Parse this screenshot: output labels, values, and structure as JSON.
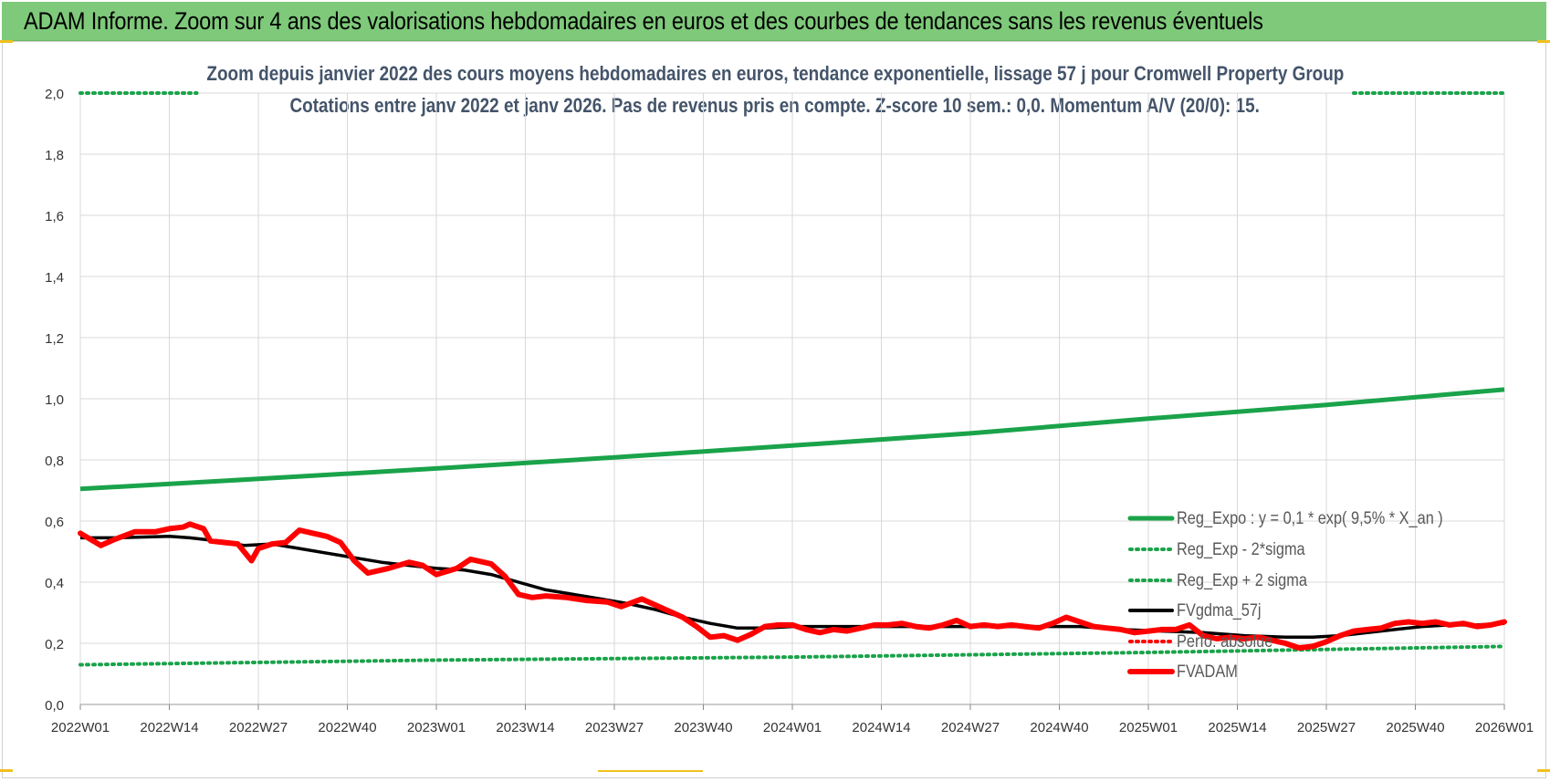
{
  "banner": {
    "title": "ADAM Informe. Zoom sur 4 ans des valorisations hebdomadaires en euros et des courbes de tendances sans les revenus éventuels"
  },
  "colors": {
    "banner_bg": "#7ec97a",
    "reg_expo": "#1aa34a",
    "sigma": "#1aa34a",
    "fvgdma": "#000000",
    "perfo": "#ff0000",
    "fvadam": "#ff0000",
    "subtitle": "#44546a",
    "grid": "#d9d9d9"
  },
  "chart_data": {
    "type": "line",
    "title": "Zoom depuis janvier 2022 des cours moyens hebdomadaires en euros, tendance exponentielle, lissage 57 j pour Cromwell Property Group",
    "subtitle": "Cotations entre janv 2022 et janv 2026. Pas de revenus pris en compte. Z-score 10 sem.: 0,0. Momentum A/V (20/0): 15.",
    "xlabel": "",
    "ylabel": "",
    "ylim": [
      0,
      2
    ],
    "yticks": [
      "0,0",
      "0,2",
      "0,4",
      "0,6",
      "0,8",
      "1,0",
      "1,2",
      "1,4",
      "1,6",
      "1,8",
      "2,0"
    ],
    "x_tick_labels": [
      "2022W01",
      "2022W14",
      "2022W27",
      "2022W40",
      "2023W01",
      "2023W14",
      "2023W27",
      "2023W40",
      "2024W01",
      "2024W14",
      "2024W27",
      "2024W40",
      "2025W01",
      "2025W14",
      "2025W27",
      "2025W40",
      "2026W01"
    ],
    "x_tick_weeks": [
      0,
      13,
      26,
      39,
      52,
      65,
      78,
      91,
      104,
      117,
      130,
      143,
      156,
      169,
      182,
      195,
      208
    ],
    "legend_position": "bottom-right",
    "series": [
      {
        "name": "Reg_Expo : y = 0,1 * exp( 9,5% *  X_an )",
        "style": "solid-thick",
        "x": [
          0,
          26,
          52,
          78,
          104,
          130,
          156,
          182,
          208
        ],
        "values": [
          0.705,
          0.738,
          0.772,
          0.808,
          0.847,
          0.887,
          0.935,
          0.98,
          1.03
        ]
      },
      {
        "name": "Reg_Exp - 2*sigma",
        "style": "dotted",
        "x": [
          0,
          52,
          104,
          156,
          208
        ],
        "values": [
          0.13,
          0.145,
          0.155,
          0.17,
          0.19
        ]
      },
      {
        "name": "Reg_Exp + 2 sigma",
        "style": "dotted",
        "x": [
          0,
          17,
          186,
          208
        ],
        "values": [
          2.0,
          2.0,
          2.0,
          2.0
        ],
        "visible_segments": [
          [
            0,
            17
          ],
          [
            186,
            208
          ]
        ]
      },
      {
        "name": "FVgdma_57j",
        "style": "solid",
        "x": [
          0,
          5,
          10,
          13,
          16,
          20,
          24,
          28,
          32,
          36,
          40,
          44,
          48,
          52,
          56,
          60,
          64,
          68,
          72,
          76,
          80,
          84,
          88,
          92,
          96,
          100,
          104,
          110,
          116,
          122,
          128,
          134,
          140,
          146,
          152,
          158,
          164,
          170,
          176,
          180,
          184,
          188,
          192,
          196,
          200,
          204,
          208
        ],
        "values": [
          0.545,
          0.545,
          0.548,
          0.55,
          0.545,
          0.535,
          0.52,
          0.525,
          0.51,
          0.495,
          0.48,
          0.465,
          0.455,
          0.445,
          0.44,
          0.425,
          0.4,
          0.375,
          0.36,
          0.345,
          0.33,
          0.31,
          0.285,
          0.265,
          0.25,
          0.25,
          0.255,
          0.255,
          0.255,
          0.255,
          0.255,
          0.255,
          0.255,
          0.255,
          0.245,
          0.24,
          0.235,
          0.225,
          0.22,
          0.22,
          0.225,
          0.235,
          0.245,
          0.255,
          0.26,
          0.26,
          0.265
        ]
      },
      {
        "name": "Perfo. absolue",
        "style": "dotted",
        "x": [
          0,
          208
        ],
        "values": [
          null,
          null
        ]
      },
      {
        "name": "FVADAM",
        "style": "solid-thick",
        "x": [
          0,
          3,
          5,
          8,
          11,
          13,
          15,
          16,
          18,
          19,
          21,
          23,
          25,
          26,
          28,
          30,
          32,
          34,
          36,
          38,
          40,
          42,
          45,
          48,
          50,
          52,
          55,
          57,
          60,
          62,
          64,
          66,
          68,
          71,
          74,
          77,
          79,
          82,
          85,
          88,
          90,
          92,
          94,
          96,
          98,
          100,
          102,
          104,
          106,
          108,
          110,
          112,
          114,
          116,
          118,
          120,
          122,
          124,
          126,
          128,
          130,
          132,
          134,
          136,
          138,
          140,
          142,
          144,
          146,
          148,
          150,
          152,
          154,
          156,
          158,
          160,
          162,
          164,
          166,
          168,
          170,
          172,
          174,
          176,
          178,
          180,
          182,
          184,
          186,
          188,
          190,
          192,
          194,
          196,
          198,
          200,
          202,
          204,
          206,
          208
        ],
        "values": [
          0.56,
          0.52,
          0.54,
          0.565,
          0.565,
          0.575,
          0.58,
          0.59,
          0.575,
          0.535,
          0.53,
          0.525,
          0.47,
          0.51,
          0.525,
          0.53,
          0.57,
          0.56,
          0.55,
          0.53,
          0.47,
          0.43,
          0.445,
          0.465,
          0.455,
          0.425,
          0.445,
          0.475,
          0.46,
          0.42,
          0.36,
          0.35,
          0.355,
          0.35,
          0.34,
          0.335,
          0.32,
          0.345,
          0.315,
          0.285,
          0.255,
          0.22,
          0.225,
          0.21,
          0.23,
          0.255,
          0.26,
          0.26,
          0.245,
          0.235,
          0.245,
          0.24,
          0.25,
          0.26,
          0.26,
          0.265,
          0.255,
          0.25,
          0.26,
          0.275,
          0.255,
          0.26,
          0.255,
          0.26,
          0.255,
          0.25,
          0.265,
          0.285,
          0.27,
          0.255,
          0.25,
          0.245,
          0.235,
          0.24,
          0.245,
          0.245,
          0.26,
          0.225,
          0.215,
          0.22,
          0.215,
          0.22,
          0.21,
          0.2,
          0.185,
          0.19,
          0.205,
          0.225,
          0.24,
          0.245,
          0.25,
          0.265,
          0.27,
          0.265,
          0.27,
          0.26,
          0.265,
          0.255,
          0.26,
          0.27
        ]
      }
    ]
  }
}
